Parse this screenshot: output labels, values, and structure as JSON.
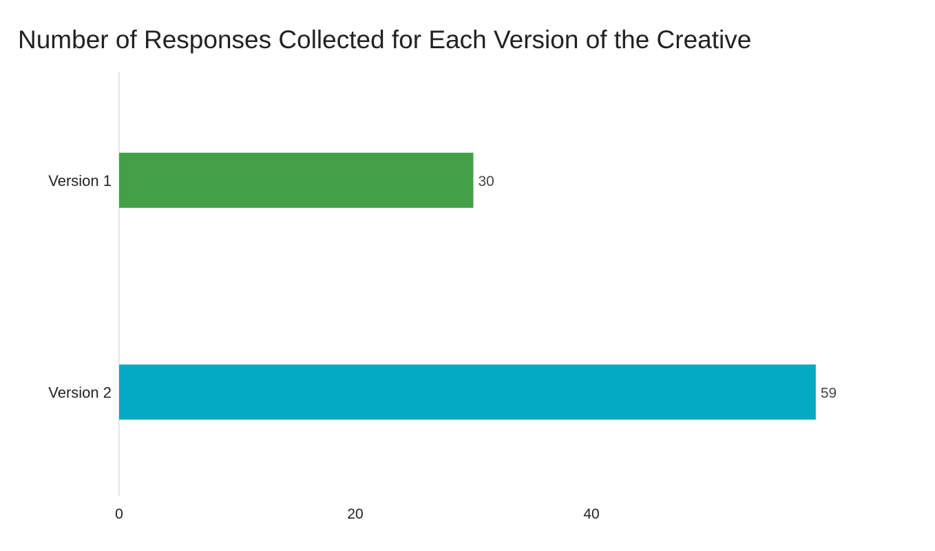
{
  "chart_data": {
    "type": "bar",
    "orientation": "horizontal",
    "title": "Number of Responses Collected for Each Version of the Creative",
    "xlabel": "",
    "ylabel": "",
    "categories": [
      "Version 1",
      "Version 2"
    ],
    "values": [
      30,
      59
    ],
    "colors": [
      "#43a047",
      "#04a9c2"
    ],
    "xlim": [
      0,
      60
    ],
    "xticks": [
      0,
      20,
      40
    ],
    "xtick_labels": [
      "0",
      "20",
      "40"
    ],
    "data_labels": [
      "30",
      "59"
    ],
    "grid": false,
    "legend": "none"
  }
}
